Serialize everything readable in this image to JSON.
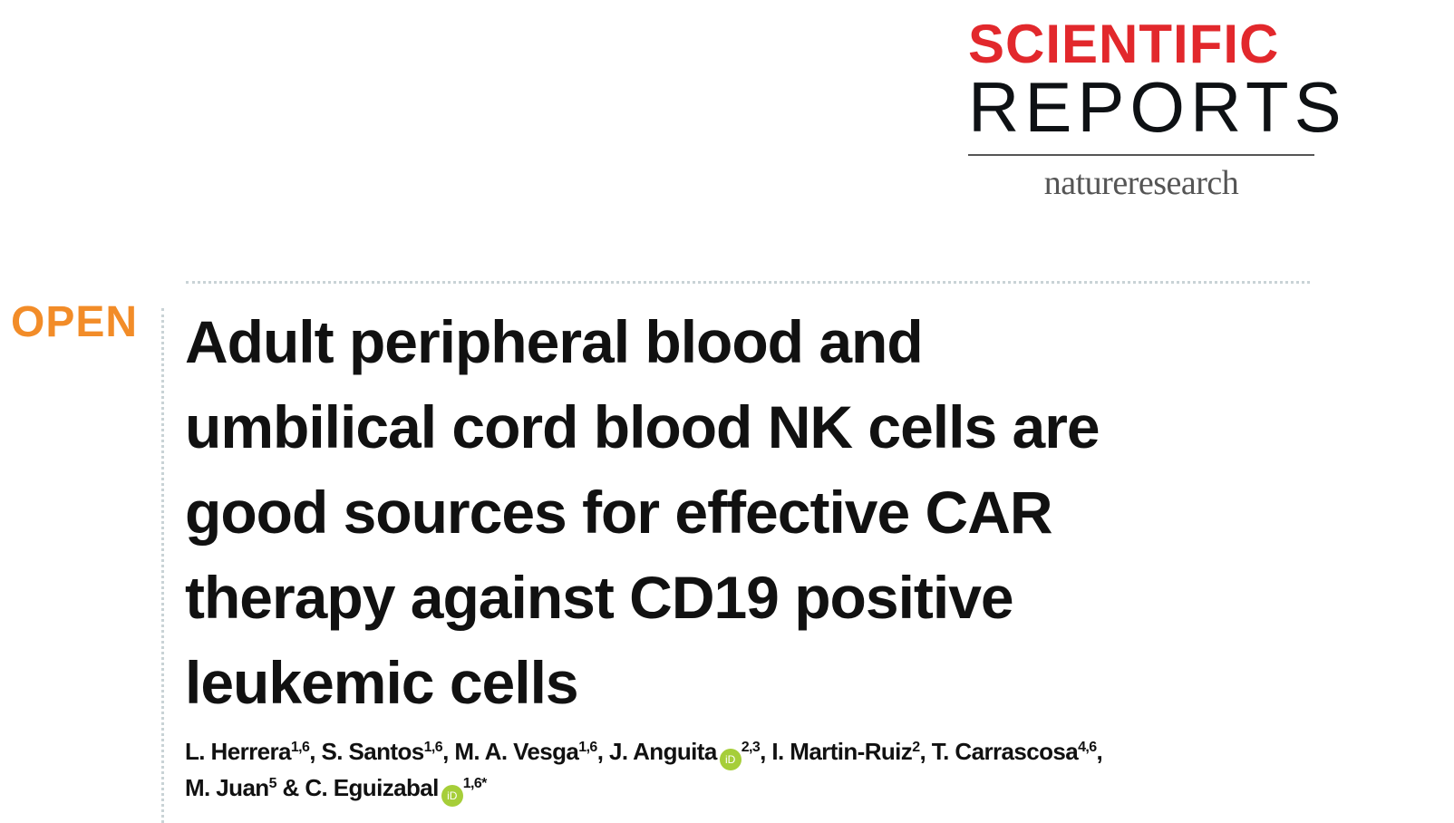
{
  "journal": {
    "name_line1": "SCIENTIFIC",
    "name_line2": "REPORTS",
    "publisher": "natureresearch"
  },
  "access_badge": "OPEN",
  "title_lines": [
    "Adult peripheral blood and",
    "umbilical cord blood NK cells are",
    "good sources for effective CAR",
    "therapy against CD19 positive",
    "leukemic cells"
  ],
  "authors": [
    {
      "name": "L. Herrera",
      "aff": "1,6",
      "sep": ", "
    },
    {
      "name": "S. Santos",
      "aff": "1,6",
      "sep": ", "
    },
    {
      "name": "M. A. Vesga",
      "aff": "1,6",
      "sep": ", "
    },
    {
      "name": "J. Anguita",
      "aff": "2,3",
      "sep": ", ",
      "orcid": "iD"
    },
    {
      "name": "I. Martin-Ruiz",
      "aff": "2",
      "sep": ", "
    },
    {
      "name": "T. Carrascosa",
      "aff": "4,6",
      "sep": ","
    },
    {
      "name": "M. Juan",
      "aff": "5",
      "sep": " & "
    },
    {
      "name": "C. Eguizabal",
      "aff": "1,6*",
      "sep": "",
      "orcid": "iD"
    }
  ],
  "colors": {
    "journal_red": "#e2282c",
    "open_orange": "#f28c28",
    "orcid_green": "#a6ce39"
  }
}
